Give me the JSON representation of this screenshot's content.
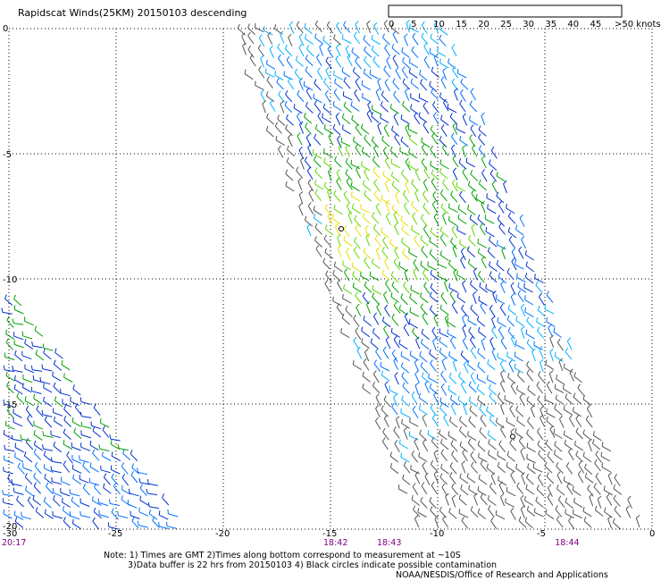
{
  "header": {
    "title": "Rapidscat Winds(25KM) 20150103 descending"
  },
  "colorbar": {
    "labels": [
      "0",
      "5",
      "10",
      "15",
      "20",
      "25",
      "30",
      "35",
      "40",
      "45",
      ">50 knots"
    ],
    "colors": [
      "#3a3a3a",
      "#8a8a8a",
      "#00b4ff",
      "#0070ff",
      "#0028c8",
      "#00a000",
      "#58d800",
      "#ffe000",
      "#ffb000",
      "#ff5000",
      "#e00000",
      "#a00000",
      "#5a3a00",
      "#b06040",
      "#ff00ff",
      "#c000ff",
      "#6000c0",
      "#400080"
    ]
  },
  "map": {
    "lon_range": [
      -30,
      0
    ],
    "lat_range": [
      -20,
      0
    ],
    "lon_ticks": [
      "-25",
      "-20",
      "-15",
      "-10",
      "-5",
      "0"
    ],
    "lat_ticks": [
      "0",
      "-5",
      "-10",
      "-15",
      "-20"
    ],
    "lower_left_lat": "-20",
    "lower_left_lon": "-30",
    "time_labels": [
      {
        "text": "20:17",
        "lon": -30.0
      },
      {
        "text": "18:42",
        "lon": -15.0
      },
      {
        "text": "18:43",
        "lon": -12.5
      },
      {
        "text": "18:44",
        "lon": -4.2
      }
    ],
    "time_color": "#800080",
    "contamination_circles": [
      {
        "lon": -14.5,
        "lat": -8.0
      },
      {
        "lon": -6.5,
        "lat": -16.3
      }
    ]
  },
  "notes": {
    "line1": "Note: 1) Times are GMT 2)Times along bottom correspond to measurement at ~10S",
    "line2": "3)Data buffer is 22 hrs from 20150103 4) Black circles indicate possible contamination",
    "line3": "NOAA/NESDIS/Office of Research and Applications"
  }
}
